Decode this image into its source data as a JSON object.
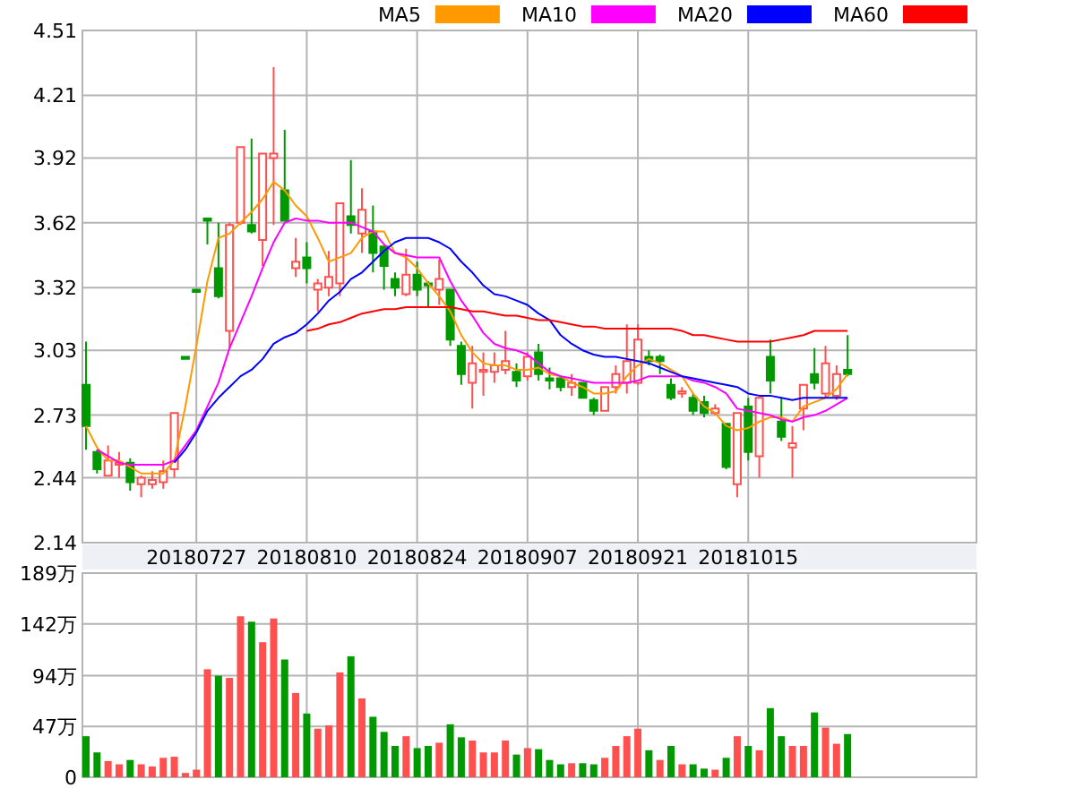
{
  "chart_data": [
    {
      "type": "candlestick",
      "categories": [
        null,
        null,
        null,
        null,
        null,
        null,
        null,
        null,
        null,
        null,
        "20180727",
        null,
        null,
        null,
        null,
        null,
        null,
        null,
        null,
        null,
        "20180810",
        null,
        null,
        null,
        null,
        null,
        null,
        null,
        null,
        null,
        "20180824",
        null,
        null,
        null,
        null,
        null,
        null,
        null,
        null,
        null,
        "20180907",
        null,
        null,
        null,
        null,
        null,
        null,
        null,
        null,
        null,
        "20180921",
        null,
        null,
        null,
        null,
        null,
        null,
        null,
        null,
        null,
        "20181015",
        null,
        null,
        null,
        null,
        null,
        null,
        null,
        null,
        null
      ],
      "ohlc": [
        [
          2.87,
          3.07,
          2.57,
          2.68
        ],
        [
          2.56,
          2.57,
          2.46,
          2.48
        ],
        [
          2.45,
          2.59,
          2.45,
          2.52
        ],
        [
          2.5,
          2.56,
          2.44,
          2.51
        ],
        [
          2.51,
          2.53,
          2.38,
          2.42
        ],
        [
          2.41,
          2.45,
          2.35,
          2.44
        ],
        [
          2.41,
          2.47,
          2.39,
          2.43
        ],
        [
          2.42,
          2.52,
          2.39,
          2.47
        ],
        [
          2.48,
          2.74,
          2.44,
          2.74
        ],
        [
          3.0,
          3.0,
          2.99,
          2.99
        ],
        [
          3.31,
          3.31,
          3.3,
          3.3
        ],
        [
          3.64,
          3.64,
          3.52,
          3.63
        ],
        [
          3.41,
          3.62,
          3.27,
          3.28
        ],
        [
          3.12,
          3.62,
          3.04,
          3.61
        ],
        [
          3.62,
          3.97,
          3.61,
          3.97
        ],
        [
          3.61,
          4.01,
          3.57,
          3.58
        ],
        [
          3.54,
          3.94,
          3.42,
          3.94
        ],
        [
          3.92,
          4.34,
          3.61,
          3.94
        ],
        [
          3.77,
          4.05,
          3.63,
          3.63
        ],
        [
          3.41,
          3.55,
          3.37,
          3.44
        ],
        [
          3.46,
          3.53,
          3.34,
          3.41
        ],
        [
          3.31,
          3.36,
          3.21,
          3.34
        ],
        [
          3.32,
          3.49,
          3.28,
          3.37
        ],
        [
          3.34,
          3.71,
          3.28,
          3.71
        ],
        [
          3.65,
          3.91,
          3.57,
          3.61
        ],
        [
          3.57,
          3.78,
          3.48,
          3.68
        ],
        [
          3.58,
          3.7,
          3.39,
          3.48
        ],
        [
          3.51,
          3.51,
          3.31,
          3.42
        ],
        [
          3.36,
          3.39,
          3.28,
          3.32
        ],
        [
          3.29,
          3.5,
          3.28,
          3.38
        ],
        [
          3.38,
          3.44,
          3.28,
          3.31
        ],
        [
          3.34,
          3.35,
          3.23,
          3.33
        ],
        [
          3.31,
          3.45,
          3.24,
          3.36
        ],
        [
          3.31,
          3.31,
          3.05,
          3.08
        ],
        [
          3.05,
          3.07,
          2.87,
          2.92
        ],
        [
          2.88,
          3.05,
          2.76,
          2.97
        ],
        [
          2.93,
          3.02,
          2.82,
          2.94
        ],
        [
          2.93,
          3.02,
          2.88,
          2.96
        ],
        [
          2.94,
          3.12,
          2.92,
          2.98
        ],
        [
          2.93,
          2.97,
          2.86,
          2.89
        ],
        [
          2.91,
          3.02,
          2.89,
          3.0
        ],
        [
          3.02,
          3.06,
          2.89,
          2.92
        ],
        [
          2.9,
          2.95,
          2.85,
          2.89
        ],
        [
          2.9,
          2.91,
          2.84,
          2.86
        ],
        [
          2.86,
          2.92,
          2.82,
          2.88
        ],
        [
          2.88,
          2.88,
          2.81,
          2.81
        ],
        [
          2.8,
          2.81,
          2.73,
          2.75
        ],
        [
          2.75,
          2.86,
          2.75,
          2.86
        ],
        [
          2.86,
          2.96,
          2.83,
          2.92
        ],
        [
          2.88,
          3.15,
          2.83,
          2.98
        ],
        [
          2.88,
          3.15,
          2.87,
          3.08
        ],
        [
          3.0,
          3.03,
          2.96,
          2.98
        ],
        [
          3.0,
          3.01,
          2.92,
          2.98
        ],
        [
          2.87,
          2.9,
          2.8,
          2.81
        ],
        [
          2.83,
          2.86,
          2.81,
          2.84
        ],
        [
          2.81,
          2.83,
          2.73,
          2.75
        ],
        [
          2.79,
          2.82,
          2.72,
          2.74
        ],
        [
          2.74,
          2.78,
          2.73,
          2.76
        ],
        [
          2.69,
          2.69,
          2.48,
          2.49
        ],
        [
          2.41,
          2.74,
          2.35,
          2.74
        ],
        [
          2.77,
          2.81,
          2.52,
          2.56
        ],
        [
          2.54,
          2.81,
          2.44,
          2.81
        ],
        [
          3.0,
          3.08,
          2.83,
          2.89
        ],
        [
          2.7,
          2.81,
          2.61,
          2.63
        ],
        [
          2.58,
          2.68,
          2.44,
          2.6
        ],
        [
          2.76,
          2.87,
          2.66,
          2.87
        ],
        [
          2.92,
          3.04,
          2.85,
          2.88
        ],
        [
          2.83,
          3.05,
          2.81,
          2.97
        ],
        [
          2.82,
          2.96,
          2.8,
          2.92
        ],
        [
          2.94,
          3.1,
          2.91,
          2.92
        ]
      ],
      "colors": [
        "#009900",
        "#009900",
        "#ff5050",
        "#ff5050",
        "#009900",
        "#ff5050",
        "#ff5050",
        "#ff5050",
        "#ff5050",
        "#009900",
        "#009900",
        "#009900",
        "#009900",
        "#ff5050",
        "#ff5050",
        "#009900",
        "#ff5050",
        "#ff5050",
        "#009900",
        "#ff5050",
        "#009900",
        "#ff5050",
        "#ff5050",
        "#ff5050",
        "#009900",
        "#ff5050",
        "#009900",
        "#009900",
        "#009900",
        "#ff5050",
        "#009900",
        "#009900",
        "#ff5050",
        "#009900",
        "#009900",
        "#ff5050",
        "#ff5050",
        "#ff5050",
        "#ff5050",
        "#009900",
        "#ff5050",
        "#009900",
        "#009900",
        "#009900",
        "#ff5050",
        "#009900",
        "#009900",
        "#ff5050",
        "#ff5050",
        "#ff5050",
        "#ff5050",
        "#009900",
        "#009900",
        "#009900",
        "#ff5050",
        "#009900",
        "#009900",
        "#ff5050",
        "#009900",
        "#ff5050",
        "#009900",
        "#ff5050",
        "#009900",
        "#009900",
        "#ff5050",
        "#ff5050",
        "#009900",
        "#ff5050",
        "#ff5050",
        "#009900"
      ],
      "series": [
        {
          "name": "MA5",
          "type": "line",
          "color": "#ff9900",
          "values": [
            2.68,
            2.58,
            2.52,
            2.52,
            2.49,
            2.46,
            2.46,
            2.46,
            2.52,
            2.77,
            3.05,
            3.35,
            3.55,
            3.57,
            3.62,
            3.67,
            3.73,
            3.81,
            3.77,
            3.7,
            3.65,
            3.55,
            3.44,
            3.46,
            3.48,
            3.55,
            3.58,
            3.58,
            3.48,
            3.46,
            3.41,
            3.34,
            3.28,
            3.21,
            3.1,
            3.02,
            2.97,
            2.96,
            2.96,
            2.94,
            2.94,
            2.95,
            2.92,
            2.91,
            2.88,
            2.86,
            2.83,
            2.83,
            2.84,
            2.91,
            2.96,
            2.99,
            2.97,
            2.94,
            2.91,
            2.83,
            2.77,
            2.74,
            2.68,
            2.66,
            2.67,
            2.7,
            2.72,
            2.72,
            2.7,
            2.77,
            2.79,
            2.81,
            2.85,
            2.92
          ]
        },
        {
          "name": "MA10",
          "type": "line",
          "color": "#ff00ff",
          "values": [
            null,
            2.57,
            2.54,
            2.51,
            2.5,
            2.5,
            2.5,
            2.5,
            2.52,
            2.59,
            2.66,
            2.77,
            2.88,
            3.04,
            3.16,
            3.28,
            3.41,
            3.53,
            3.62,
            3.64,
            3.63,
            3.63,
            3.62,
            3.62,
            3.62,
            3.6,
            3.58,
            3.52,
            3.48,
            3.47,
            3.46,
            3.46,
            3.46,
            3.35,
            3.26,
            3.19,
            3.11,
            3.06,
            3.04,
            3.03,
            3.01,
            2.97,
            2.93,
            2.91,
            2.9,
            2.89,
            2.88,
            2.88,
            2.88,
            2.88,
            2.89,
            2.91,
            2.91,
            2.91,
            2.91,
            2.89,
            2.88,
            2.86,
            2.83,
            2.76,
            2.75,
            2.74,
            2.73,
            2.71,
            2.7,
            2.72,
            2.73,
            2.75,
            2.78,
            2.81
          ]
        },
        {
          "name": "MA20",
          "type": "line",
          "color": "#0000ff",
          "values": [
            null,
            null,
            null,
            null,
            null,
            null,
            null,
            null,
            2.51,
            2.57,
            2.65,
            2.75,
            2.81,
            2.86,
            2.91,
            2.94,
            2.99,
            3.06,
            3.09,
            3.11,
            3.15,
            3.2,
            3.26,
            3.3,
            3.36,
            3.39,
            3.44,
            3.49,
            3.53,
            3.55,
            3.55,
            3.55,
            3.53,
            3.5,
            3.44,
            3.39,
            3.33,
            3.29,
            3.28,
            3.26,
            3.24,
            3.2,
            3.17,
            3.1,
            3.06,
            3.03,
            3.01,
            3.0,
            3.0,
            2.99,
            2.98,
            2.97,
            2.95,
            2.93,
            2.91,
            2.9,
            2.89,
            2.88,
            2.87,
            2.86,
            2.83,
            2.82,
            2.82,
            2.81,
            2.8,
            2.81,
            2.81,
            2.81,
            2.81,
            2.81
          ]
        },
        {
          "name": "MA60",
          "type": "line",
          "color": "#ff0000",
          "values": [
            null,
            null,
            null,
            null,
            null,
            null,
            null,
            null,
            null,
            null,
            null,
            null,
            null,
            null,
            null,
            null,
            null,
            null,
            null,
            null,
            3.12,
            3.13,
            3.15,
            3.16,
            3.18,
            3.2,
            3.21,
            3.22,
            3.22,
            3.23,
            3.23,
            3.23,
            3.23,
            3.23,
            3.22,
            3.21,
            3.21,
            3.2,
            3.19,
            3.19,
            3.18,
            3.17,
            3.17,
            3.16,
            3.15,
            3.14,
            3.14,
            3.13,
            3.13,
            3.13,
            3.13,
            3.13,
            3.13,
            3.13,
            3.12,
            3.1,
            3.1,
            3.09,
            3.08,
            3.07,
            3.07,
            3.07,
            3.07,
            3.08,
            3.09,
            3.1,
            3.12,
            3.12,
            3.12,
            3.12
          ]
        }
      ],
      "ylim": [
        2.14,
        4.51
      ],
      "yticks": [
        2.14,
        2.44,
        2.73,
        3.03,
        3.32,
        3.62,
        3.92,
        4.21,
        4.51
      ],
      "grid": true,
      "legend": "top right"
    },
    {
      "type": "bar",
      "categories": [
        null,
        null,
        null,
        null,
        null,
        null,
        null,
        null,
        null,
        null,
        "20180727",
        null,
        null,
        null,
        null,
        null,
        null,
        null,
        null,
        null,
        "20180810",
        null,
        null,
        null,
        null,
        null,
        null,
        null,
        null,
        null,
        "20180824",
        null,
        null,
        null,
        null,
        null,
        null,
        null,
        null,
        null,
        "20180907",
        null,
        null,
        null,
        null,
        null,
        null,
        null,
        null,
        null,
        "20180921",
        null,
        null,
        null,
        null,
        null,
        null,
        null,
        null,
        null,
        "20181015",
        null,
        null,
        null,
        null,
        null,
        null,
        null,
        null,
        null
      ],
      "values": [
        38,
        23,
        15,
        12,
        16,
        12,
        10,
        18,
        19,
        4,
        7,
        100,
        94,
        92,
        149,
        144,
        125,
        147,
        109,
        78,
        59,
        45,
        48,
        97,
        112,
        73,
        56,
        42,
        29,
        38,
        27,
        29,
        32,
        49,
        37,
        34,
        23,
        23,
        34,
        21,
        27,
        26,
        16,
        12,
        13,
        13,
        12,
        18,
        29,
        38,
        45,
        25,
        16,
        29,
        12,
        12,
        8,
        7,
        18,
        38,
        29,
        25,
        64,
        38,
        29,
        29,
        60,
        46,
        31,
        40
      ],
      "colors": [
        "#009900",
        "#009900",
        "#ff5050",
        "#ff5050",
        "#009900",
        "#ff5050",
        "#ff5050",
        "#ff5050",
        "#ff5050",
        "#ff5050",
        "#ff5050",
        "#ff5050",
        "#009900",
        "#ff5050",
        "#ff5050",
        "#009900",
        "#ff5050",
        "#ff5050",
        "#009900",
        "#ff5050",
        "#009900",
        "#ff5050",
        "#ff5050",
        "#ff5050",
        "#009900",
        "#ff5050",
        "#009900",
        "#009900",
        "#009900",
        "#ff5050",
        "#009900",
        "#009900",
        "#ff5050",
        "#009900",
        "#009900",
        "#ff5050",
        "#ff5050",
        "#ff5050",
        "#ff5050",
        "#009900",
        "#ff5050",
        "#009900",
        "#009900",
        "#009900",
        "#ff5050",
        "#009900",
        "#009900",
        "#ff5050",
        "#ff5050",
        "#ff5050",
        "#ff5050",
        "#009900",
        "#ff5050",
        "#009900",
        "#ff5050",
        "#009900",
        "#009900",
        "#ff5050",
        "#009900",
        "#ff5050",
        "#009900",
        "#ff5050",
        "#009900",
        "#009900",
        "#ff5050",
        "#ff5050",
        "#009900",
        "#ff5050",
        "#ff5050",
        "#009900"
      ],
      "ylim": [
        0,
        189
      ],
      "yticks": [
        0,
        {
          "value": 47,
          "label": "47万"
        },
        {
          "value": 94,
          "label": "94万"
        },
        {
          "value": 142,
          "label": "142万"
        },
        {
          "value": 189,
          "label": "189万"
        }
      ],
      "grid": true,
      "tick_labels": "y"
    }
  ]
}
